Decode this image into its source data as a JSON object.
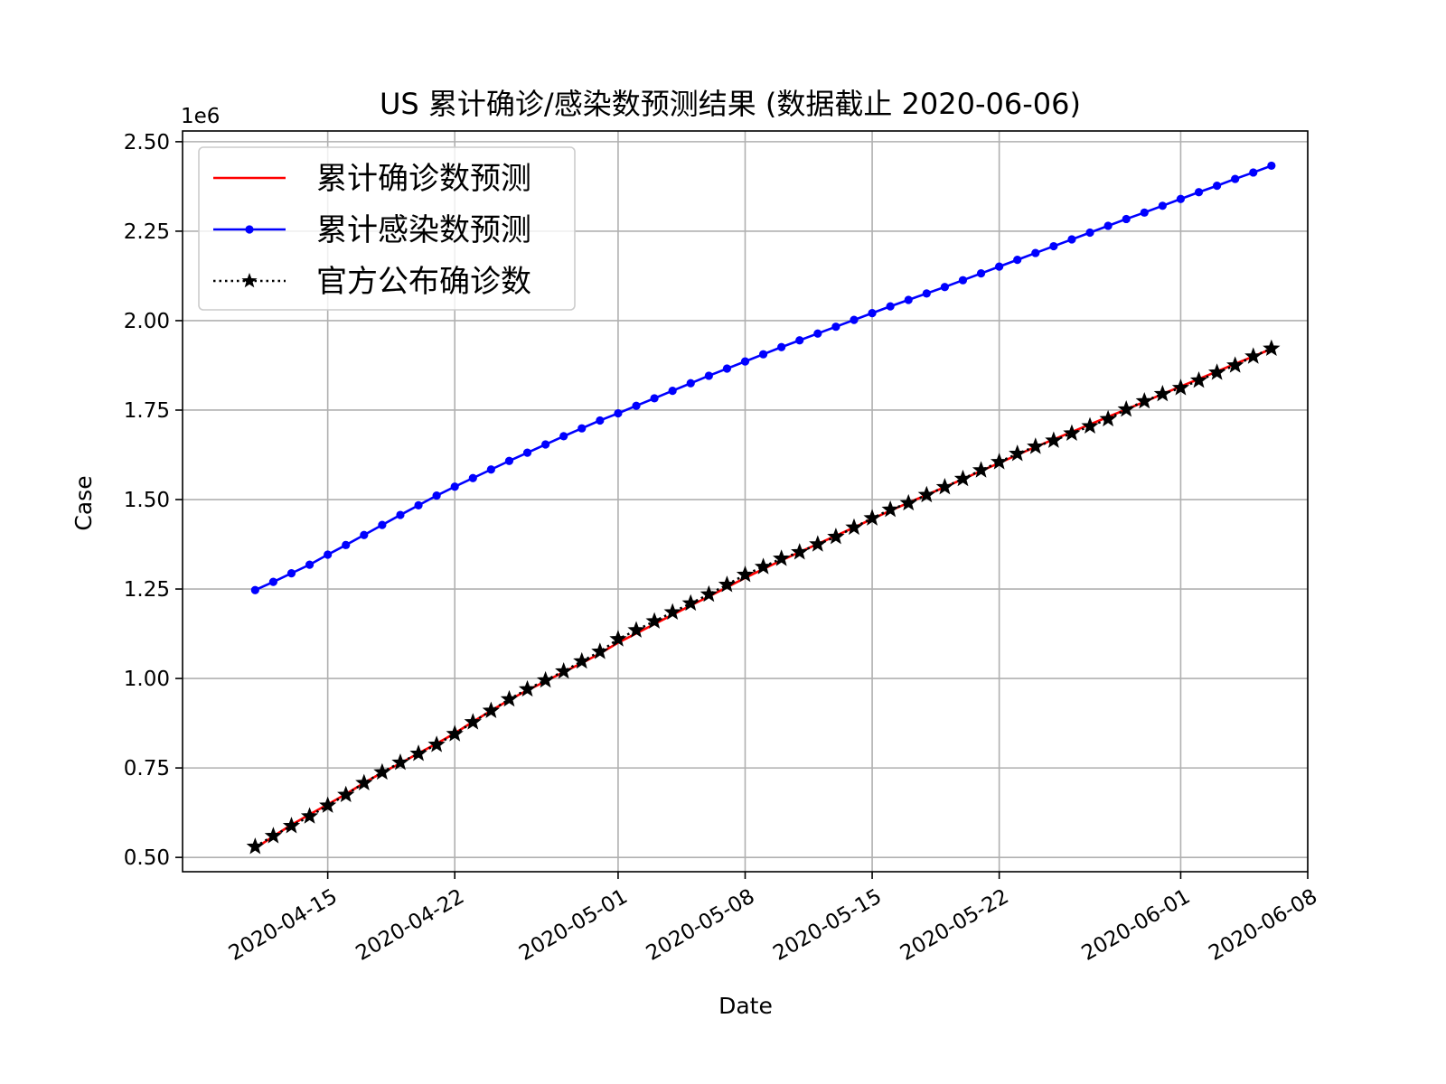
{
  "chart_data": {
    "type": "line",
    "title": "US 累计确诊/感染数预测结果 (数据截止 2020-06-06)",
    "xlabel": "Date",
    "ylabel": "Case",
    "y_offset_label": "1e6",
    "y_scale": 1000000,
    "ylim": [
      0.46,
      2.53
    ],
    "xlim": [
      "2020-04-07",
      "2020-06-08"
    ],
    "x_ticks": [
      "2020-04-15",
      "2020-04-22",
      "2020-05-01",
      "2020-05-08",
      "2020-05-15",
      "2020-05-22",
      "2020-06-01",
      "2020-06-08"
    ],
    "y_ticks": [
      0.5,
      0.75,
      1.0,
      1.25,
      1.5,
      1.75,
      2.0,
      2.25,
      2.5
    ],
    "grid": true,
    "legend_position": "upper-left",
    "x_start": "2020-04-11",
    "x_end": "2020-06-06",
    "series": [
      {
        "name": "累计确诊数预测",
        "color": "#ff0000",
        "style": "solid",
        "marker": "none",
        "values": [
          0.525,
          0.559,
          0.591,
          0.62,
          0.648,
          0.677,
          0.708,
          0.737,
          0.763,
          0.791,
          0.818,
          0.847,
          0.879,
          0.91,
          0.94,
          0.967,
          0.992,
          1.018,
          1.043,
          1.07,
          1.1,
          1.126,
          1.152,
          1.178,
          1.204,
          1.229,
          1.255,
          1.281,
          1.306,
          1.33,
          1.353,
          1.376,
          1.399,
          1.422,
          1.446,
          1.469,
          1.491,
          1.513,
          1.535,
          1.557,
          1.58,
          1.602,
          1.625,
          1.647,
          1.668,
          1.689,
          1.71,
          1.731,
          1.752,
          1.773,
          1.795,
          1.816,
          1.837,
          1.858,
          1.879,
          1.9,
          1.921
        ]
      },
      {
        "name": "累计感染数预测",
        "color": "#0000ff",
        "style": "solid",
        "marker": "circle",
        "values": [
          1.247,
          1.27,
          1.294,
          1.318,
          1.346,
          1.373,
          1.401,
          1.429,
          1.457,
          1.484,
          1.511,
          1.536,
          1.56,
          1.584,
          1.608,
          1.631,
          1.654,
          1.677,
          1.699,
          1.721,
          1.741,
          1.762,
          1.783,
          1.804,
          1.825,
          1.846,
          1.866,
          1.886,
          1.906,
          1.926,
          1.945,
          1.964,
          1.983,
          2.002,
          2.021,
          2.04,
          2.058,
          2.076,
          2.094,
          2.113,
          2.132,
          2.151,
          2.17,
          2.189,
          2.208,
          2.227,
          2.246,
          2.265,
          2.284,
          2.302,
          2.321,
          2.34,
          2.359,
          2.377,
          2.396,
          2.414,
          2.433
        ]
      },
      {
        "name": "官方公布确诊数",
        "color": "#000000",
        "style": "dotted",
        "marker": "star",
        "values": [
          0.53,
          0.56,
          0.588,
          0.615,
          0.645,
          0.675,
          0.708,
          0.738,
          0.765,
          0.79,
          0.815,
          0.845,
          0.878,
          0.91,
          0.942,
          0.97,
          0.995,
          1.02,
          1.048,
          1.075,
          1.11,
          1.135,
          1.16,
          1.185,
          1.21,
          1.235,
          1.262,
          1.29,
          1.312,
          1.335,
          1.353,
          1.375,
          1.396,
          1.422,
          1.448,
          1.472,
          1.49,
          1.513,
          1.535,
          1.558,
          1.582,
          1.605,
          1.628,
          1.648,
          1.665,
          1.685,
          1.705,
          1.725,
          1.752,
          1.775,
          1.795,
          1.812,
          1.833,
          1.855,
          1.875,
          1.9,
          1.922
        ]
      }
    ]
  }
}
